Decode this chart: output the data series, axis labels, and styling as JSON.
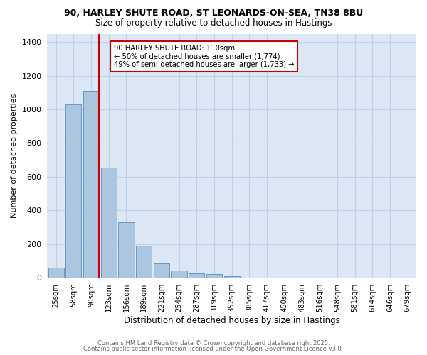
{
  "title1": "90, HARLEY SHUTE ROAD, ST LEONARDS-ON-SEA, TN38 8BU",
  "title2": "Size of property relative to detached houses in Hastings",
  "xlabel": "Distribution of detached houses by size in Hastings",
  "ylabel": "Number of detached properties",
  "bar_labels": [
    "25sqm",
    "58sqm",
    "90sqm",
    "123sqm",
    "156sqm",
    "189sqm",
    "221sqm",
    "254sqm",
    "287sqm",
    "319sqm",
    "352sqm",
    "385sqm",
    "417sqm",
    "450sqm",
    "483sqm",
    "516sqm",
    "548sqm",
    "581sqm",
    "614sqm",
    "646sqm",
    "679sqm"
  ],
  "bar_values": [
    60,
    1030,
    1110,
    655,
    330,
    190,
    85,
    40,
    25,
    20,
    10,
    0,
    0,
    0,
    0,
    0,
    0,
    0,
    0,
    0,
    0
  ],
  "bar_color": "#adc6e0",
  "bar_edge_color": "#6699cc",
  "vline_color": "#cc0000",
  "annotation_text": "90 HARLEY SHUTE ROAD: 110sqm\n← 50% of detached houses are smaller (1,774)\n49% of semi-detached houses are larger (1,733) →",
  "annotation_box_color": "#cc0000",
  "ylim": [
    0,
    1450
  ],
  "yticks": [
    0,
    200,
    400,
    600,
    800,
    1000,
    1200,
    1400
  ],
  "footer1": "Contains HM Land Registry data © Crown copyright and database right 2025.",
  "footer2": "Contains public sector information licensed under the Open Government Licence v3.0.",
  "background_color": "#ffffff",
  "plot_bg_color": "#dce8f5",
  "grid_color": "#c0d0e8"
}
